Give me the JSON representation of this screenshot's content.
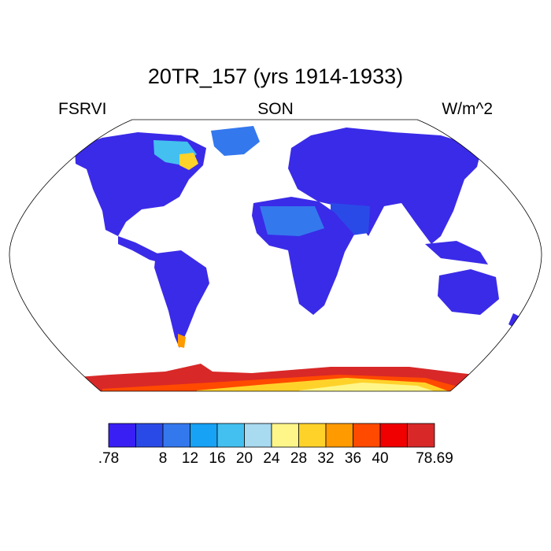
{
  "header": {
    "title": "20TR_157 (yrs 1914-1933)",
    "left_label": "FSRVI",
    "center_label": "SON",
    "right_label": "W/m^2"
  },
  "map": {
    "projection": "robinson",
    "land_base_color": "#3A2BE8",
    "coastline_color": "#000000"
  },
  "colorbar": {
    "colors": [
      "#3A1FF5",
      "#2A4AE8",
      "#3478EE",
      "#17A2F5",
      "#43C0F0",
      "#A8DAF0",
      "#FFF68A",
      "#FFD22A",
      "#FF9A00",
      "#FF4A00",
      "#F00000",
      "#D82828"
    ],
    "tick_labels": [
      ".78",
      "8",
      "12",
      "16",
      "20",
      "24",
      "28",
      "32",
      "36",
      "40",
      "78.69"
    ],
    "tick_boundary_index": [
      0,
      2,
      3,
      4,
      5,
      6,
      7,
      8,
      9,
      10,
      12
    ]
  }
}
